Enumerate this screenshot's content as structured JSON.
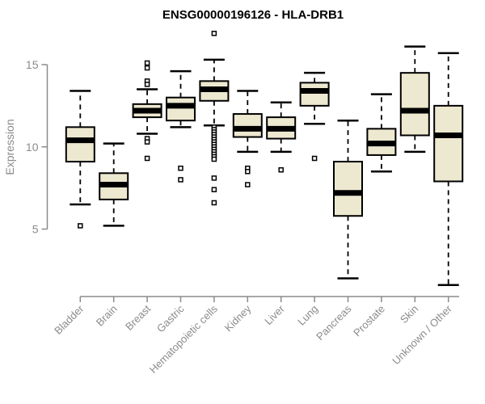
{
  "colors": {
    "background": "#FFFFFF",
    "box_fill": "#EDE8D0",
    "box_stroke": "#000000",
    "median": "#000000",
    "whisker": "#000000",
    "outlier_fill": "#FFFFFF",
    "axis": "#8B8B8B",
    "label": "#8B8B8B",
    "title": "#000000"
  },
  "chart_data": {
    "type": "boxplot",
    "title": "ENSG00000196126 - HLA-DRB1",
    "xlabel": "",
    "ylabel": "Expression",
    "yticks": [
      5,
      10,
      15
    ],
    "y_axis_range": [
      5,
      15
    ],
    "visible_value_range": [
      1.6,
      16.9
    ],
    "grid": false,
    "legend": false,
    "categories": [
      "Bladder",
      "Brain",
      "Breast",
      "Gastric",
      "Hematopoietic cells",
      "Kidney",
      "Liver",
      "Lung",
      "Pancreas",
      "Prostate",
      "Skin",
      "Unknown / Other"
    ],
    "boxes": [
      {
        "category": "Bladder",
        "whisker_low": 6.5,
        "q1": 9.1,
        "median": 10.4,
        "q3": 11.2,
        "whisker_high": 13.4,
        "outliers": [
          5.2
        ]
      },
      {
        "category": "Brain",
        "whisker_low": 5.2,
        "q1": 6.8,
        "median": 7.7,
        "q3": 8.4,
        "whisker_high": 10.2,
        "outliers": []
      },
      {
        "category": "Breast",
        "whisker_low": 10.8,
        "q1": 11.8,
        "median": 12.2,
        "q3": 12.6,
        "whisker_high": 13.5,
        "outliers": [
          15.1,
          14.8,
          14.0,
          13.8,
          10.5,
          10.3,
          9.3
        ]
      },
      {
        "category": "Gastric",
        "whisker_low": 11.2,
        "q1": 11.6,
        "median": 12.5,
        "q3": 13.0,
        "whisker_high": 14.6,
        "outliers": [
          8.7,
          8.0
        ]
      },
      {
        "category": "Hematopoietic cells",
        "whisker_low": 11.3,
        "q1": 12.8,
        "median": 13.5,
        "q3": 14.0,
        "whisker_high": 15.3,
        "outliers": [
          16.9,
          11.2,
          11.05,
          10.9,
          10.75,
          10.6,
          10.45,
          10.3,
          10.15,
          10.0,
          9.85,
          9.7,
          9.55,
          9.4,
          9.25,
          8.1,
          7.4,
          6.6
        ]
      },
      {
        "category": "Kidney",
        "whisker_low": 9.7,
        "q1": 10.6,
        "median": 11.1,
        "q3": 12.0,
        "whisker_high": 13.4,
        "outliers": [
          8.7,
          8.5,
          7.7
        ]
      },
      {
        "category": "Liver",
        "whisker_low": 9.7,
        "q1": 10.5,
        "median": 11.1,
        "q3": 11.8,
        "whisker_high": 12.7,
        "outliers": [
          8.6
        ]
      },
      {
        "category": "Lung",
        "whisker_low": 11.4,
        "q1": 12.5,
        "median": 13.4,
        "q3": 13.9,
        "whisker_high": 14.5,
        "outliers": [
          9.3
        ]
      },
      {
        "category": "Pancreas",
        "whisker_low": 2.0,
        "q1": 5.8,
        "median": 7.2,
        "q3": 9.1,
        "whisker_high": 11.6,
        "outliers": []
      },
      {
        "category": "Prostate",
        "whisker_low": 8.5,
        "q1": 9.5,
        "median": 10.2,
        "q3": 11.1,
        "whisker_high": 13.2,
        "outliers": []
      },
      {
        "category": "Skin",
        "whisker_low": 9.7,
        "q1": 10.7,
        "median": 12.2,
        "q3": 14.5,
        "whisker_high": 16.1,
        "outliers": []
      },
      {
        "category": "Unknown / Other",
        "whisker_low": 1.6,
        "q1": 7.9,
        "median": 10.7,
        "q3": 12.5,
        "whisker_high": 15.7,
        "outliers": []
      }
    ]
  }
}
